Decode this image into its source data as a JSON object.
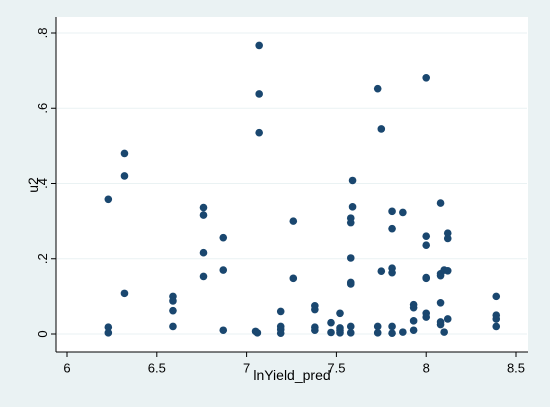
{
  "chart_data": {
    "type": "scatter",
    "title": "",
    "xlabel": "lnYield_pred",
    "ylabel": "u2",
    "xlim": [
      6,
      8.5
    ],
    "ylim": [
      0,
      0.8
    ],
    "x_ticks": [
      {
        "value": 6,
        "label": "6"
      },
      {
        "value": 6.5,
        "label": "6.5"
      },
      {
        "value": 7,
        "label": "7"
      },
      {
        "value": 7.5,
        "label": "7.5"
      },
      {
        "value": 8,
        "label": "8"
      },
      {
        "value": 8.5,
        "label": "8.5"
      }
    ],
    "y_ticks": [
      {
        "value": 0,
        "label": "0"
      },
      {
        "value": 0.2,
        "label": ".2"
      },
      {
        "value": 0.4,
        "label": ".4"
      },
      {
        "value": 0.6,
        "label": ".6"
      },
      {
        "value": 0.8,
        "label": ".8"
      }
    ],
    "grid": "horizontal",
    "legend": "none",
    "colors": {
      "background": "#eaf2f3",
      "plot_area": "#ffffff",
      "marker": "#1a476f",
      "gridline": "#eaf2f3",
      "axis": "#000000"
    },
    "points": [
      {
        "x": 6.23,
        "y": 0.358
      },
      {
        "x": 6.23,
        "y": 0.018
      },
      {
        "x": 6.23,
        "y": 0.003
      },
      {
        "x": 6.32,
        "y": 0.48
      },
      {
        "x": 6.32,
        "y": 0.42
      },
      {
        "x": 6.32,
        "y": 0.108
      },
      {
        "x": 6.59,
        "y": 0.1
      },
      {
        "x": 6.59,
        "y": 0.088
      },
      {
        "x": 6.59,
        "y": 0.062
      },
      {
        "x": 6.59,
        "y": 0.02
      },
      {
        "x": 6.76,
        "y": 0.336
      },
      {
        "x": 6.76,
        "y": 0.316
      },
      {
        "x": 6.76,
        "y": 0.216
      },
      {
        "x": 6.76,
        "y": 0.153
      },
      {
        "x": 6.87,
        "y": 0.256
      },
      {
        "x": 6.87,
        "y": 0.17
      },
      {
        "x": 6.87,
        "y": 0.01
      },
      {
        "x": 7.05,
        "y": 0.007
      },
      {
        "x": 7.06,
        "y": 0.003
      },
      {
        "x": 7.07,
        "y": 0.767
      },
      {
        "x": 7.07,
        "y": 0.638
      },
      {
        "x": 7.07,
        "y": 0.535
      },
      {
        "x": 7.19,
        "y": 0.06
      },
      {
        "x": 7.19,
        "y": 0.02
      },
      {
        "x": 7.19,
        "y": 0.012
      },
      {
        "x": 7.19,
        "y": 0.002
      },
      {
        "x": 7.26,
        "y": 0.3
      },
      {
        "x": 7.26,
        "y": 0.148
      },
      {
        "x": 7.38,
        "y": 0.075
      },
      {
        "x": 7.38,
        "y": 0.065
      },
      {
        "x": 7.38,
        "y": 0.018
      },
      {
        "x": 7.38,
        "y": 0.01
      },
      {
        "x": 7.47,
        "y": 0.03
      },
      {
        "x": 7.47,
        "y": 0.004
      },
      {
        "x": 7.52,
        "y": 0.055
      },
      {
        "x": 7.52,
        "y": 0.016
      },
      {
        "x": 7.52,
        "y": 0.01
      },
      {
        "x": 7.52,
        "y": 0.003
      },
      {
        "x": 7.59,
        "y": 0.408
      },
      {
        "x": 7.59,
        "y": 0.338
      },
      {
        "x": 7.58,
        "y": 0.308
      },
      {
        "x": 7.58,
        "y": 0.296
      },
      {
        "x": 7.58,
        "y": 0.202
      },
      {
        "x": 7.58,
        "y": 0.137
      },
      {
        "x": 7.58,
        "y": 0.133
      },
      {
        "x": 7.58,
        "y": 0.02
      },
      {
        "x": 7.58,
        "y": 0.003
      },
      {
        "x": 7.73,
        "y": 0.652
      },
      {
        "x": 7.75,
        "y": 0.545
      },
      {
        "x": 7.75,
        "y": 0.167
      },
      {
        "x": 7.73,
        "y": 0.02
      },
      {
        "x": 7.73,
        "y": 0.003
      },
      {
        "x": 7.81,
        "y": 0.326
      },
      {
        "x": 7.81,
        "y": 0.28
      },
      {
        "x": 7.81,
        "y": 0.175
      },
      {
        "x": 7.81,
        "y": 0.163
      },
      {
        "x": 7.81,
        "y": 0.02
      },
      {
        "x": 7.81,
        "y": 0.002
      },
      {
        "x": 7.87,
        "y": 0.323
      },
      {
        "x": 7.87,
        "y": 0.005
      },
      {
        "x": 7.93,
        "y": 0.078
      },
      {
        "x": 7.93,
        "y": 0.07
      },
      {
        "x": 7.93,
        "y": 0.035
      },
      {
        "x": 7.93,
        "y": 0.01
      },
      {
        "x": 8.0,
        "y": 0.681
      },
      {
        "x": 8.0,
        "y": 0.26
      },
      {
        "x": 8.0,
        "y": 0.236
      },
      {
        "x": 8.0,
        "y": 0.15
      },
      {
        "x": 8.0,
        "y": 0.148
      },
      {
        "x": 8.0,
        "y": 0.055
      },
      {
        "x": 8.0,
        "y": 0.045
      },
      {
        "x": 8.08,
        "y": 0.348
      },
      {
        "x": 8.08,
        "y": 0.16
      },
      {
        "x": 8.08,
        "y": 0.155
      },
      {
        "x": 8.08,
        "y": 0.083
      },
      {
        "x": 8.08,
        "y": 0.032
      },
      {
        "x": 8.08,
        "y": 0.025
      },
      {
        "x": 8.1,
        "y": 0.17
      },
      {
        "x": 8.1,
        "y": 0.005
      },
      {
        "x": 8.12,
        "y": 0.268
      },
      {
        "x": 8.12,
        "y": 0.254
      },
      {
        "x": 8.12,
        "y": 0.168
      },
      {
        "x": 8.12,
        "y": 0.04
      },
      {
        "x": 8.39,
        "y": 0.1
      },
      {
        "x": 8.39,
        "y": 0.05
      },
      {
        "x": 8.39,
        "y": 0.04
      },
      {
        "x": 8.39,
        "y": 0.02
      }
    ]
  }
}
